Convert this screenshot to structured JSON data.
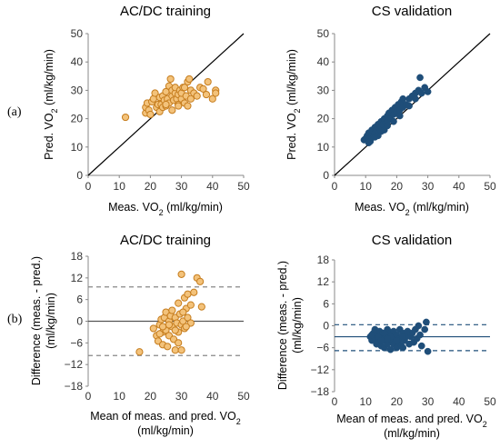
{
  "panel_labels": [
    "(a)",
    "(b)"
  ],
  "colors": {
    "orange_fill": "#F3C27A",
    "orange_edge": "#C67D1E",
    "blue": "#1F4E79"
  },
  "chart_data": [
    {
      "type": "scatter",
      "title": "AC/DC training",
      "xlabel_main": "Meas. VO",
      "xlabel_sub": "2",
      "xlabel_tail": " (ml/kg/min)",
      "ylabel_main": "Pred. VO",
      "ylabel_sub": "2",
      "ylabel_tail": " (ml/kg/min)",
      "xlim": [
        0,
        50
      ],
      "ylim": [
        0,
        50
      ],
      "xticks": [
        "0",
        "10",
        "20",
        "30",
        "40",
        "50"
      ],
      "yticks": [
        "0",
        "10",
        "20",
        "30",
        "40",
        "50"
      ],
      "identity_line": true,
      "marker": "orange",
      "points": [
        [
          12,
          20.5
        ],
        [
          18.5,
          22
        ],
        [
          18.5,
          24
        ],
        [
          19,
          25.5
        ],
        [
          19.5,
          23
        ],
        [
          20,
          21.5
        ],
        [
          20.5,
          26
        ],
        [
          21,
          27
        ],
        [
          21.5,
          29
        ],
        [
          22,
          24
        ],
        [
          22.5,
          25
        ],
        [
          23,
          27.5
        ],
        [
          23,
          22.5
        ],
        [
          23.5,
          25
        ],
        [
          24,
          24
        ],
        [
          24,
          28
        ],
        [
          24.5,
          26.5
        ],
        [
          25,
          24.5
        ],
        [
          25,
          29.5
        ],
        [
          25.5,
          27
        ],
        [
          26,
          25.5
        ],
        [
          26,
          31.5
        ],
        [
          26.5,
          34
        ],
        [
          27,
          28
        ],
        [
          27,
          30
        ],
        [
          27.5,
          26.5
        ],
        [
          28,
          29
        ],
        [
          28,
          31
        ],
        [
          28.5,
          27
        ],
        [
          29,
          28.5
        ],
        [
          29,
          25
        ],
        [
          29.5,
          30
        ],
        [
          30,
          27
        ],
        [
          30,
          29
        ],
        [
          30.5,
          31
        ],
        [
          31,
          25.5
        ],
        [
          31.5,
          28
        ],
        [
          32,
          33
        ],
        [
          32.5,
          34
        ],
        [
          33,
          30
        ],
        [
          33,
          27
        ],
        [
          34,
          29
        ],
        [
          35,
          28
        ],
        [
          36,
          31
        ],
        [
          37,
          30.5
        ],
        [
          38,
          28.5
        ],
        [
          38.5,
          33
        ],
        [
          40,
          27
        ],
        [
          41,
          30
        ],
        [
          41,
          29
        ],
        [
          27,
          23
        ],
        [
          29,
          24.5
        ],
        [
          32,
          24.5
        ],
        [
          25,
          25
        ],
        [
          31,
          31
        ]
      ]
    },
    {
      "type": "scatter",
      "title": "CS validation",
      "xlabel_main": "Meas. VO",
      "xlabel_sub": "2",
      "xlabel_tail": " (ml/kg/min)",
      "ylabel_main": "Pred. VO",
      "ylabel_sub": "2",
      "ylabel_tail": " (ml/kg/min)",
      "xlim": [
        0,
        50
      ],
      "ylim": [
        0,
        50
      ],
      "xticks": [
        "0",
        "10",
        "20",
        "30",
        "40",
        "50"
      ],
      "yticks": [
        "0",
        "10",
        "20",
        "30",
        "40",
        "50"
      ],
      "identity_line": true,
      "marker": "blue",
      "points": [
        [
          9.5,
          12.5
        ],
        [
          10,
          13
        ],
        [
          10.5,
          14
        ],
        [
          11,
          13
        ],
        [
          11,
          15
        ],
        [
          11.5,
          12
        ],
        [
          12,
          14.5
        ],
        [
          12,
          16
        ],
        [
          12.5,
          13.5
        ],
        [
          13,
          15
        ],
        [
          13,
          17
        ],
        [
          13.5,
          16
        ],
        [
          14,
          14
        ],
        [
          14,
          18
        ],
        [
          14.5,
          16.5
        ],
        [
          15,
          17
        ],
        [
          15,
          19
        ],
        [
          15.5,
          18
        ],
        [
          16,
          16
        ],
        [
          16,
          20
        ],
        [
          16.5,
          18.5
        ],
        [
          17,
          21
        ],
        [
          17,
          19
        ],
        [
          17.5,
          22
        ],
        [
          18,
          20
        ],
        [
          18.5,
          23
        ],
        [
          19,
          21.5
        ],
        [
          19.5,
          24
        ],
        [
          20,
          22.5
        ],
        [
          20.5,
          25
        ],
        [
          21,
          23
        ],
        [
          21.5,
          26
        ],
        [
          22,
          24
        ],
        [
          23,
          25
        ],
        [
          24,
          27
        ],
        [
          25,
          28
        ],
        [
          26,
          29
        ],
        [
          27,
          30
        ],
        [
          27.5,
          34.5
        ],
        [
          28,
          29
        ],
        [
          29,
          31
        ],
        [
          30,
          29.5
        ],
        [
          24,
          24.5
        ],
        [
          22,
          27
        ],
        [
          26,
          27
        ],
        [
          13,
          13.5
        ],
        [
          15,
          15.5
        ],
        [
          17,
          17.5
        ],
        [
          19,
          19
        ],
        [
          21,
          21
        ],
        [
          11,
          11.5
        ]
      ]
    },
    {
      "type": "scatter",
      "title": "AC/DC training",
      "xlabel_main": "Mean of meas. and pred. VO",
      "xlabel_sub": "2",
      "xlabel_line2": "(ml/kg/min)",
      "ylabel_line1": "Difference (meas. - pred.)",
      "ylabel_line2": "(ml/kg/min)",
      "xlim": [
        0,
        50
      ],
      "ylim": [
        -18,
        18
      ],
      "xticks": [
        "0",
        "10",
        "20",
        "30",
        "40",
        "50"
      ],
      "yticks": [
        "18",
        "12",
        "6",
        "0",
        "−6",
        "−12",
        "−18"
      ],
      "ytick_values": [
        18,
        12,
        6,
        0,
        -6,
        -12,
        -18
      ],
      "mean_line": 0,
      "limits_of_agreement": [
        9.5,
        -9.5
      ],
      "marker": "orange",
      "points": [
        [
          16.5,
          -8.5
        ],
        [
          21,
          -2
        ],
        [
          22,
          -4
        ],
        [
          22.5,
          -5.5
        ],
        [
          23,
          -1
        ],
        [
          23.5,
          0.5
        ],
        [
          24,
          -3
        ],
        [
          24,
          -6.5
        ],
        [
          24.5,
          1
        ],
        [
          25,
          -2.5
        ],
        [
          25,
          2.5
        ],
        [
          25.5,
          -7
        ],
        [
          26,
          0
        ],
        [
          26,
          -4
        ],
        [
          26.5,
          1.5
        ],
        [
          27,
          -1.5
        ],
        [
          27,
          3
        ],
        [
          27.5,
          -5
        ],
        [
          28,
          -8
        ],
        [
          28,
          1
        ],
        [
          28.5,
          -0.5
        ],
        [
          29,
          5
        ],
        [
          29,
          -3
        ],
        [
          29.5,
          2
        ],
        [
          30,
          -1
        ],
        [
          30,
          -8
        ],
        [
          30,
          13
        ],
        [
          30.5,
          0
        ],
        [
          31,
          6.5
        ],
        [
          31,
          -2
        ],
        [
          31.5,
          3.5
        ],
        [
          32,
          7.5
        ],
        [
          32,
          1
        ],
        [
          33,
          4.5
        ],
        [
          33,
          -0.5
        ],
        [
          34,
          8
        ],
        [
          35,
          12
        ],
        [
          36,
          11
        ],
        [
          36.5,
          4
        ],
        [
          26,
          -1
        ],
        [
          28,
          -2.5
        ],
        [
          24,
          -1.5
        ],
        [
          30.5,
          2.5
        ],
        [
          31.5,
          -1.5
        ],
        [
          23,
          -3.5
        ],
        [
          29,
          -6
        ]
      ]
    },
    {
      "type": "scatter",
      "title": "CS validation",
      "xlabel_main": "Mean of meas. and pred. VO",
      "xlabel_sub": "2",
      "xlabel_line2": "(ml/kg/min)",
      "ylabel_line1": "Difference (meas. - pred.)",
      "ylabel_line2": "(ml/kg/min)",
      "xlim": [
        0,
        50
      ],
      "ylim": [
        -18,
        18
      ],
      "xticks": [
        "0",
        "10",
        "20",
        "30",
        "40",
        "50"
      ],
      "yticks": [
        "18",
        "12",
        "6",
        "0",
        "−6",
        "−12",
        "−18"
      ],
      "ytick_values": [
        18,
        12,
        6,
        0,
        -6,
        -12,
        -18
      ],
      "mean_line": -3,
      "limits_of_agreement": [
        0.3,
        -6.8
      ],
      "marker": "blue",
      "points": [
        [
          11.5,
          -3
        ],
        [
          12,
          -4
        ],
        [
          12.5,
          -2
        ],
        [
          13,
          -3.5
        ],
        [
          13,
          -1
        ],
        [
          13.5,
          -5
        ],
        [
          14,
          -2.5
        ],
        [
          14,
          -4.5
        ],
        [
          14.5,
          -1.5
        ],
        [
          15,
          -3
        ],
        [
          15,
          -5.5
        ],
        [
          15.5,
          -2
        ],
        [
          16,
          -4
        ],
        [
          16,
          -6
        ],
        [
          16.5,
          -3
        ],
        [
          17,
          -1
        ],
        [
          17,
          -5
        ],
        [
          17.5,
          -3.5
        ],
        [
          18,
          -2
        ],
        [
          18,
          -6.5
        ],
        [
          18.5,
          -4
        ],
        [
          19,
          -1.5
        ],
        [
          19,
          -5
        ],
        [
          19.5,
          -3
        ],
        [
          20,
          -6
        ],
        [
          20,
          -2.5
        ],
        [
          20.5,
          -4.5
        ],
        [
          21,
          -1
        ],
        [
          21,
          -3.5
        ],
        [
          21.5,
          -5.5
        ],
        [
          22,
          -2
        ],
        [
          22,
          -6
        ],
        [
          22.5,
          -4
        ],
        [
          23,
          -3
        ],
        [
          23.5,
          -1.5
        ],
        [
          24,
          -5
        ],
        [
          24.5,
          -3
        ],
        [
          25,
          -2
        ],
        [
          25.5,
          -4.5
        ],
        [
          26,
          -1
        ],
        [
          26.5,
          -3.5
        ],
        [
          27,
          0
        ],
        [
          27.5,
          -2.5
        ],
        [
          28,
          -5.5
        ],
        [
          29,
          -1
        ],
        [
          29.5,
          1
        ],
        [
          30,
          -7
        ],
        [
          14,
          -3
        ],
        [
          16,
          -2
        ],
        [
          18,
          -3
        ],
        [
          20,
          -4
        ],
        [
          22,
          -3
        ],
        [
          12,
          -2.5
        ],
        [
          15,
          -4
        ],
        [
          17,
          -3.5
        ]
      ]
    }
  ]
}
